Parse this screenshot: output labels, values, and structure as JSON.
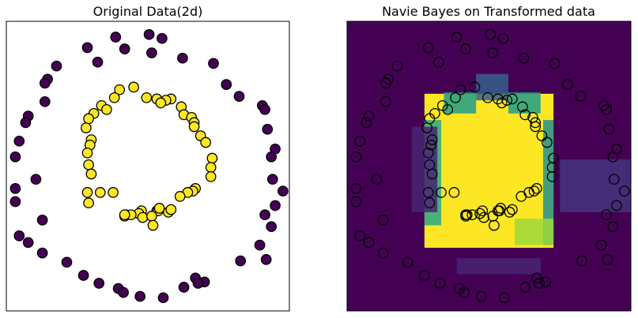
{
  "colors": {
    "class0": "#440154",
    "class1": "#fde725",
    "marker_edge": "#000000",
    "axes_frame": "#000000",
    "viridis": [
      "#440154",
      "#482878",
      "#3e4989",
      "#31688e",
      "#26828e",
      "#1f9e89",
      "#35b779",
      "#6ece58",
      "#b5de2b",
      "#fde725"
    ]
  },
  "chart_data": [
    {
      "type": "scatter",
      "title": "Original Data(2d)",
      "xlabel": "",
      "ylabel": "",
      "grid": false,
      "legend": "none",
      "axes_ticks": false,
      "xlim": [
        -1.1,
        1.1
      ],
      "ylim": [
        -1.1,
        1.1
      ],
      "series": [
        {
          "class": 0,
          "color": "#440154",
          "points": [
            [
              -0.25,
              0.98
            ],
            [
              0.01,
              1.0
            ],
            [
              0.11,
              0.97
            ],
            [
              -0.47,
              0.9
            ],
            [
              -0.18,
              0.89
            ],
            [
              0.03,
              0.86
            ],
            [
              0.27,
              0.82
            ],
            [
              -0.39,
              0.79
            ],
            [
              0.51,
              0.78
            ],
            [
              -0.71,
              0.76
            ],
            [
              0.61,
              0.62
            ],
            [
              -0.78,
              0.66
            ],
            [
              -0.8,
              0.63
            ],
            [
              0.71,
              0.53
            ],
            [
              -0.8,
              0.49
            ],
            [
              0.89,
              0.46
            ],
            [
              -0.93,
              0.38
            ],
            [
              0.91,
              0.43
            ],
            [
              -0.95,
              0.33
            ],
            [
              0.93,
              0.28
            ],
            [
              -1.0,
              0.19
            ],
            [
              0.99,
              0.13
            ],
            [
              -1.03,
              0.07
            ],
            [
              0.96,
              0.07
            ],
            [
              -0.87,
              -0.1
            ],
            [
              0.97,
              -0.1
            ],
            [
              -1.03,
              -0.17
            ],
            [
              1.05,
              -0.19
            ],
            [
              -1.03,
              -0.27
            ],
            [
              0.99,
              -0.3
            ],
            [
              0.91,
              -0.37
            ],
            [
              -0.82,
              -0.41
            ],
            [
              0.96,
              -0.46
            ],
            [
              -1.0,
              -0.53
            ],
            [
              -0.93,
              -0.58
            ],
            [
              0.87,
              -0.6
            ],
            [
              0.92,
              -0.71
            ],
            [
              -0.82,
              -0.66
            ],
            [
              -0.63,
              -0.73
            ],
            [
              0.72,
              -0.72
            ],
            [
              -0.5,
              -0.83
            ],
            [
              0.44,
              -0.88
            ],
            [
              -0.38,
              -0.89
            ],
            [
              0.28,
              -0.92
            ],
            [
              -0.23,
              -0.93
            ],
            [
              0.12,
              -1.0
            ],
            [
              -0.19,
              -0.96
            ],
            [
              -0.06,
              -0.99
            ],
            [
              0.37,
              -0.85
            ],
            [
              0.39,
              -0.89
            ]
          ]
        },
        {
          "class": 1,
          "color": "#fde725",
          "points": [
            [
              -0.22,
              0.58
            ],
            [
              -0.11,
              0.6
            ],
            [
              -0.01,
              0.52
            ],
            [
              0.07,
              0.51
            ],
            [
              0.18,
              0.51
            ],
            [
              0.14,
              0.5
            ],
            [
              -0.26,
              0.52
            ],
            [
              0.1,
              0.48
            ],
            [
              -0.36,
              0.46
            ],
            [
              -0.32,
              0.43
            ],
            [
              0.26,
              0.45
            ],
            [
              -0.42,
              0.4
            ],
            [
              0.28,
              0.39
            ],
            [
              -0.46,
              0.36
            ],
            [
              0.34,
              0.37
            ],
            [
              0.36,
              0.33
            ],
            [
              -0.48,
              0.29
            ],
            [
              0.36,
              0.3
            ],
            [
              0.41,
              0.23
            ],
            [
              -0.44,
              0.2
            ],
            [
              -0.45,
              0.16
            ],
            [
              0.45,
              0.18
            ],
            [
              -0.47,
              0.1
            ],
            [
              0.5,
              0.06
            ],
            [
              -0.46,
              0.01
            ],
            [
              0.49,
              -0.01
            ],
            [
              -0.44,
              -0.06
            ],
            [
              0.49,
              -0.08
            ],
            [
              0.37,
              -0.17
            ],
            [
              0.35,
              -0.19
            ],
            [
              -0.47,
              -0.2
            ],
            [
              -0.37,
              -0.2
            ],
            [
              -0.27,
              -0.2
            ],
            [
              0.31,
              -0.2
            ],
            [
              0.25,
              -0.23
            ],
            [
              -0.46,
              -0.28
            ],
            [
              -0.05,
              -0.34
            ],
            [
              0.07,
              -0.34
            ],
            [
              0.08,
              -0.34
            ],
            [
              0.16,
              -0.35
            ],
            [
              0.09,
              -0.32
            ],
            [
              0.18,
              -0.33
            ],
            [
              -0.07,
              -0.36
            ],
            [
              -0.18,
              -0.38
            ],
            [
              -0.17,
              -0.37
            ],
            [
              -0.13,
              -0.37
            ],
            [
              -0.18,
              -0.37
            ],
            [
              -0.04,
              -0.39
            ],
            [
              0.03,
              -0.38
            ],
            [
              0.04,
              -0.45
            ]
          ]
        }
      ]
    },
    {
      "type": "heatmap",
      "title": "Navie Bayes on Transformed data",
      "xlabel": "",
      "ylabel": "",
      "grid": false,
      "legend": "none",
      "axes_ticks": false,
      "xlim": [
        -1.1,
        1.1
      ],
      "ylim": [
        -1.1,
        1.1
      ],
      "background_value": 0,
      "regions": [
        {
          "x": [
            -0.5,
            0.5
          ],
          "y": [
            -0.62,
            0.55
          ],
          "value": 1.0
        },
        {
          "x": [
            -0.1,
            0.15
          ],
          "y": [
            0.5,
            0.7
          ],
          "value": 0.3
        },
        {
          "x": [
            -0.35,
            -0.1
          ],
          "y": [
            0.4,
            0.56
          ],
          "value": 0.55
        },
        {
          "x": [
            0.15,
            0.4
          ],
          "y": [
            0.4,
            0.56
          ],
          "value": 0.55
        },
        {
          "x": [
            -0.5,
            -0.37
          ],
          "y": [
            -0.45,
            0.35
          ],
          "value": 0.6
        },
        {
          "x": [
            0.42,
            0.5
          ],
          "y": [
            -0.6,
            0.35
          ],
          "value": 0.5
        },
        {
          "x": [
            0.55,
            1.1
          ],
          "y": [
            -0.35,
            0.05
          ],
          "value": 0.15
        },
        {
          "x": [
            0.2,
            0.5
          ],
          "y": [
            -0.6,
            -0.4
          ],
          "value": 0.85
        },
        {
          "x": [
            -0.25,
            0.4
          ],
          "y": [
            -0.82,
            -0.7
          ],
          "value": 0.1
        },
        {
          "x": [
            -0.6,
            -0.4
          ],
          "y": [
            -0.35,
            0.3
          ],
          "value": 0.1
        }
      ],
      "overlay_from_chart": 0
    }
  ]
}
